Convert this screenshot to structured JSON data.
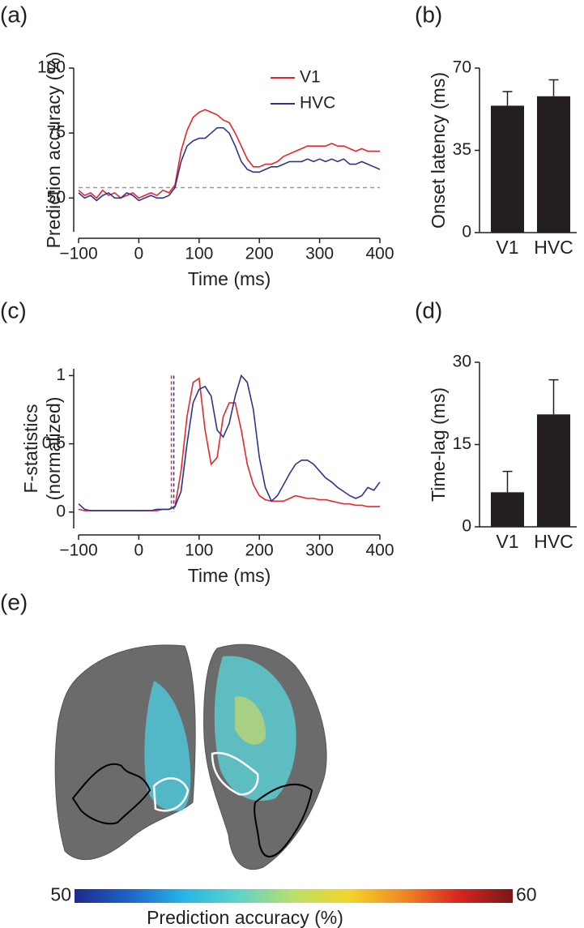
{
  "chart_data": [
    {
      "type": "line",
      "panel_label": "(a)",
      "xlabel": "Time (ms)",
      "ylabel": "Prediction accuracy (%)",
      "x": [
        -100,
        -90,
        -80,
        -70,
        -60,
        -50,
        -40,
        -30,
        -20,
        -10,
        0,
        10,
        20,
        30,
        40,
        50,
        60,
        70,
        80,
        90,
        100,
        110,
        120,
        130,
        140,
        150,
        160,
        170,
        180,
        190,
        200,
        210,
        220,
        230,
        240,
        250,
        260,
        270,
        280,
        290,
        300,
        310,
        320,
        330,
        340,
        350,
        360,
        370,
        380,
        390,
        400
      ],
      "series": [
        {
          "name": "V1",
          "color": "#e8262c",
          "values": [
            53,
            51,
            52,
            50,
            53,
            51,
            52,
            50,
            51,
            52,
            50,
            51,
            52,
            51,
            53,
            52,
            55,
            68,
            76,
            81,
            83,
            84,
            83,
            82,
            80,
            79,
            75,
            70,
            65,
            62,
            62,
            63,
            63,
            64,
            66,
            67,
            68,
            69,
            70,
            70,
            70,
            70,
            71,
            70,
            70,
            69,
            68,
            69,
            68,
            68,
            68
          ]
        },
        {
          "name": "HVC",
          "color": "#2b3590",
          "values": [
            52,
            50,
            51,
            49,
            51,
            52,
            50,
            50,
            52,
            51,
            49,
            50,
            51,
            50,
            50,
            51,
            54,
            64,
            70,
            72,
            73,
            73,
            75,
            77,
            77,
            75,
            70,
            64,
            61,
            60,
            60,
            61,
            62,
            62,
            63,
            64,
            64,
            64,
            65,
            64,
            65,
            64,
            65,
            64,
            65,
            63,
            63,
            64,
            63,
            62,
            61
          ]
        }
      ],
      "reference_line": 54,
      "xlim": [
        -100,
        400
      ],
      "xticks": [
        {
          "value": -100,
          "label": "−100"
        },
        0,
        100,
        200,
        300,
        400
      ],
      "ylim": [
        37,
        100
      ],
      "yticks": [
        50,
        75,
        100
      ],
      "legend": "upper right"
    },
    {
      "type": "bar",
      "panel_label": "(b)",
      "ylabel": "Onset latency (ms)",
      "categories": [
        "V1",
        "HVC"
      ],
      "values": [
        54,
        58
      ],
      "errors": [
        6,
        7
      ],
      "color": "#231f20",
      "ylim": [
        0,
        70
      ],
      "yticks": [
        0,
        35,
        70
      ]
    },
    {
      "type": "line",
      "panel_label": "(c)",
      "xlabel": "Time (ms)",
      "ylabel": [
        "F-statistics",
        "(normalized)"
      ],
      "x": [
        -100,
        -90,
        -80,
        -70,
        -60,
        -50,
        -40,
        -30,
        -20,
        -10,
        0,
        10,
        20,
        30,
        40,
        50,
        60,
        70,
        80,
        90,
        100,
        110,
        120,
        130,
        140,
        150,
        160,
        170,
        180,
        190,
        200,
        210,
        220,
        230,
        240,
        250,
        260,
        270,
        280,
        290,
        300,
        310,
        320,
        330,
        340,
        350,
        360,
        370,
        380,
        390,
        400
      ],
      "series": [
        {
          "name": "V1",
          "color": "#e8262c",
          "onset": 54,
          "values": [
            0.02,
            0.01,
            0.01,
            0.01,
            0.01,
            0.01,
            0.01,
            0.01,
            0.01,
            0.01,
            0.01,
            0.01,
            0.01,
            0.01,
            0.02,
            0.02,
            0.04,
            0.3,
            0.7,
            0.95,
            0.98,
            0.6,
            0.35,
            0.4,
            0.7,
            0.8,
            0.8,
            0.6,
            0.35,
            0.2,
            0.12,
            0.09,
            0.08,
            0.08,
            0.08,
            0.1,
            0.12,
            0.11,
            0.1,
            0.1,
            0.09,
            0.09,
            0.08,
            0.07,
            0.06,
            0.06,
            0.05,
            0.05,
            0.04,
            0.04,
            0.04
          ]
        },
        {
          "name": "HVC",
          "color": "#2b3590",
          "onset": 58,
          "values": [
            0.06,
            0.02,
            0.01,
            0.01,
            0.01,
            0.01,
            0.01,
            0.01,
            0.01,
            0.01,
            0.01,
            0.01,
            0.01,
            0.02,
            0.02,
            0.02,
            0.04,
            0.15,
            0.5,
            0.8,
            0.9,
            0.92,
            0.85,
            0.6,
            0.55,
            0.65,
            0.85,
            1.0,
            0.95,
            0.75,
            0.4,
            0.18,
            0.08,
            0.12,
            0.2,
            0.28,
            0.35,
            0.38,
            0.38,
            0.35,
            0.3,
            0.25,
            0.22,
            0.18,
            0.15,
            0.12,
            0.1,
            0.12,
            0.18,
            0.16,
            0.22
          ]
        }
      ],
      "xlim": [
        -100,
        400
      ],
      "xticks": [
        {
          "value": -100,
          "label": "−100"
        },
        0,
        100,
        200,
        300,
        400
      ],
      "ylim": [
        -0.12,
        1.05
      ],
      "yticks": [
        0,
        0.5,
        1
      ]
    },
    {
      "type": "bar",
      "panel_label": "(d)",
      "ylabel": "Time-lag (ms)",
      "categories": [
        "V1",
        "HVC"
      ],
      "values": [
        6.3,
        20.5
      ],
      "errors": [
        3.8,
        6.3
      ],
      "color": "#231f20",
      "ylim": [
        0,
        30
      ],
      "yticks": [
        0,
        15,
        30
      ]
    },
    {
      "type": "colorbar",
      "panel_label": "(e)",
      "xlabel": "Prediction accuracy (%)",
      "xlim": [
        50,
        60
      ],
      "xticks": [
        50,
        60
      ],
      "colormap": [
        "#1f2a8c",
        "#1e63c8",
        "#27b6e8",
        "#5fd3c8",
        "#b9e06a",
        "#f2d52b",
        "#f08a24",
        "#d8261f",
        "#7a1717"
      ]
    }
  ]
}
